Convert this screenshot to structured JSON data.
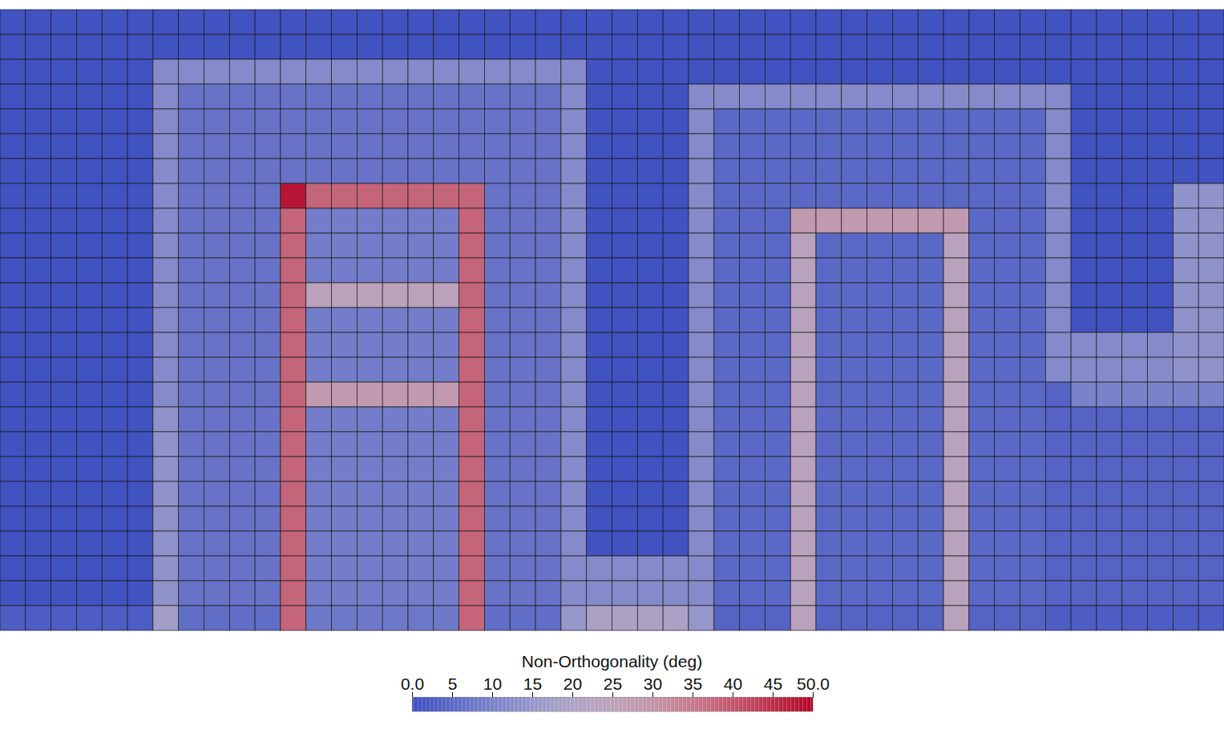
{
  "chart_data": {
    "type": "heatmap",
    "tick_labels": false,
    "cells": [
      [
        1,
        1,
        1,
        1,
        1,
        1,
        1,
        1,
        1,
        1,
        1,
        1,
        1,
        1,
        1,
        1,
        1,
        1,
        1,
        1,
        1,
        1,
        1,
        1,
        1,
        1,
        1,
        1,
        1,
        1,
        1,
        1,
        1,
        1,
        1,
        1,
        1,
        1,
        1,
        1,
        1,
        1,
        1,
        1,
        1,
        1,
        1,
        1
      ],
      [
        1,
        1,
        1,
        1,
        1,
        1,
        1,
        1,
        1,
        1,
        1,
        1,
        1,
        1,
        1,
        1,
        1,
        1,
        1,
        1,
        1,
        1,
        1,
        1,
        1,
        1,
        1,
        1,
        1,
        1,
        1,
        1,
        1,
        1,
        1,
        1,
        1,
        1,
        1,
        1,
        1,
        1,
        1,
        1,
        1,
        1,
        1,
        1
      ],
      [
        1,
        1,
        1,
        1,
        1,
        1,
        12,
        12,
        12,
        12,
        12,
        12,
        12,
        12,
        12,
        12,
        12,
        12,
        12,
        12,
        12,
        12,
        12,
        1,
        1,
        1,
        1,
        1,
        1,
        1,
        1,
        1,
        1,
        1,
        1,
        1,
        1,
        1,
        1,
        1,
        1,
        1,
        1,
        1,
        1,
        1,
        1,
        1
      ],
      [
        1,
        1,
        1,
        1,
        1,
        1,
        12,
        7,
        7,
        7,
        7,
        7,
        7,
        7,
        7,
        7,
        7,
        7,
        7,
        7,
        7,
        7,
        12,
        1,
        1,
        1,
        1,
        12,
        12,
        12,
        12,
        12,
        12,
        12,
        12,
        12,
        12,
        12,
        12,
        12,
        12,
        12,
        1,
        1,
        1,
        1,
        1,
        1
      ],
      [
        1,
        1,
        1,
        1,
        1,
        1,
        12,
        7,
        7,
        7,
        7,
        7,
        7,
        7,
        7,
        7,
        7,
        7,
        7,
        7,
        7,
        7,
        12,
        1,
        1,
        1,
        1,
        12,
        5,
        5,
        5,
        5,
        5,
        5,
        5,
        5,
        5,
        5,
        5,
        5,
        5,
        12,
        1,
        1,
        1,
        1,
        1,
        1
      ],
      [
        1,
        1,
        1,
        1,
        1,
        1,
        12,
        7,
        7,
        7,
        7,
        7,
        7,
        7,
        7,
        7,
        7,
        7,
        7,
        7,
        7,
        7,
        12,
        1,
        1,
        1,
        1,
        12,
        5,
        5,
        5,
        5,
        5,
        5,
        5,
        5,
        5,
        5,
        5,
        5,
        5,
        12,
        1,
        1,
        1,
        1,
        1,
        1
      ],
      [
        1,
        1,
        1,
        1,
        1,
        1,
        12,
        7,
        7,
        7,
        7,
        7,
        7,
        7,
        7,
        7,
        7,
        7,
        7,
        7,
        7,
        7,
        12,
        1,
        1,
        1,
        1,
        12,
        5,
        5,
        5,
        5,
        5,
        5,
        5,
        5,
        5,
        5,
        5,
        5,
        5,
        12,
        1,
        1,
        1,
        1,
        1,
        1
      ],
      [
        1,
        1,
        1,
        1,
        1,
        1,
        12,
        7,
        7,
        7,
        7,
        48,
        38,
        38,
        38,
        38,
        38,
        38,
        38,
        7,
        7,
        7,
        12,
        1,
        1,
        1,
        1,
        12,
        5,
        5,
        5,
        5,
        5,
        5,
        5,
        5,
        5,
        5,
        5,
        5,
        5,
        12,
        1,
        1,
        1,
        1,
        14,
        14
      ],
      [
        1,
        1,
        1,
        1,
        1,
        1,
        12,
        7,
        7,
        7,
        7,
        38,
        9,
        9,
        9,
        9,
        9,
        9,
        38,
        7,
        7,
        7,
        12,
        1,
        1,
        1,
        1,
        12,
        5,
        5,
        5,
        28,
        28,
        28,
        28,
        28,
        28,
        28,
        5,
        5,
        5,
        12,
        1,
        1,
        1,
        1,
        14,
        14
      ],
      [
        1,
        1,
        1,
        1,
        1,
        1,
        12,
        7,
        7,
        7,
        7,
        38,
        9,
        9,
        9,
        9,
        9,
        9,
        38,
        7,
        7,
        7,
        12,
        1,
        1,
        1,
        1,
        12,
        5,
        5,
        5,
        24,
        5,
        5,
        5,
        5,
        5,
        24,
        5,
        5,
        5,
        12,
        1,
        1,
        1,
        1,
        14,
        14
      ],
      [
        1,
        1,
        1,
        1,
        1,
        1,
        12,
        7,
        7,
        7,
        7,
        38,
        9,
        9,
        9,
        9,
        9,
        9,
        38,
        7,
        7,
        7,
        12,
        1,
        1,
        1,
        1,
        12,
        5,
        5,
        5,
        24,
        5,
        5,
        5,
        5,
        5,
        24,
        5,
        5,
        5,
        12,
        1,
        1,
        1,
        1,
        14,
        14
      ],
      [
        1,
        1,
        1,
        1,
        1,
        1,
        12,
        7,
        7,
        7,
        7,
        38,
        25,
        25,
        25,
        25,
        25,
        25,
        38,
        7,
        7,
        7,
        12,
        1,
        1,
        1,
        1,
        12,
        5,
        5,
        5,
        24,
        5,
        5,
        5,
        5,
        5,
        24,
        5,
        5,
        5,
        12,
        1,
        1,
        1,
        1,
        14,
        14
      ],
      [
        1,
        1,
        1,
        1,
        1,
        1,
        12,
        7,
        7,
        7,
        7,
        38,
        9,
        9,
        9,
        9,
        9,
        9,
        38,
        7,
        7,
        7,
        12,
        1,
        1,
        1,
        1,
        12,
        5,
        5,
        5,
        24,
        5,
        5,
        5,
        5,
        5,
        24,
        5,
        5,
        5,
        12,
        1,
        1,
        1,
        1,
        14,
        14
      ],
      [
        1,
        1,
        1,
        1,
        1,
        1,
        12,
        7,
        7,
        7,
        7,
        38,
        9,
        9,
        9,
        9,
        9,
        9,
        38,
        7,
        7,
        7,
        12,
        1,
        1,
        1,
        1,
        12,
        5,
        5,
        5,
        24,
        5,
        5,
        5,
        5,
        5,
        24,
        5,
        5,
        5,
        12,
        12,
        12,
        12,
        12,
        14,
        14
      ],
      [
        1,
        1,
        1,
        1,
        1,
        1,
        12,
        7,
        7,
        7,
        7,
        38,
        9,
        9,
        9,
        9,
        9,
        9,
        38,
        7,
        7,
        7,
        12,
        1,
        1,
        1,
        1,
        12,
        5,
        5,
        5,
        24,
        5,
        5,
        5,
        5,
        5,
        24,
        5,
        5,
        5,
        12,
        12,
        12,
        12,
        12,
        14,
        14
      ],
      [
        1,
        1,
        1,
        1,
        1,
        1,
        12,
        7,
        7,
        7,
        7,
        38,
        28,
        28,
        28,
        28,
        28,
        28,
        38,
        7,
        7,
        7,
        12,
        1,
        1,
        1,
        1,
        12,
        5,
        5,
        5,
        24,
        5,
        5,
        5,
        5,
        5,
        24,
        5,
        5,
        5,
        4,
        10,
        10,
        10,
        10,
        10,
        10
      ],
      [
        1,
        1,
        1,
        1,
        1,
        1,
        14,
        7,
        7,
        7,
        7,
        38,
        9,
        9,
        9,
        9,
        9,
        9,
        38,
        7,
        7,
        7,
        12,
        1,
        1,
        1,
        1,
        12,
        5,
        5,
        5,
        24,
        5,
        5,
        5,
        5,
        5,
        24,
        5,
        5,
        5,
        4,
        4,
        4,
        4,
        4,
        4,
        4
      ],
      [
        1,
        1,
        1,
        1,
        1,
        1,
        14,
        7,
        7,
        7,
        7,
        38,
        9,
        9,
        9,
        9,
        9,
        9,
        38,
        7,
        7,
        7,
        12,
        1,
        1,
        1,
        1,
        12,
        5,
        5,
        5,
        24,
        5,
        5,
        5,
        5,
        5,
        24,
        5,
        5,
        5,
        4,
        4,
        4,
        4,
        4,
        4,
        4
      ],
      [
        1,
        1,
        1,
        1,
        1,
        1,
        14,
        7,
        7,
        7,
        7,
        38,
        9,
        9,
        9,
        9,
        9,
        9,
        38,
        7,
        7,
        7,
        12,
        1,
        1,
        1,
        1,
        12,
        5,
        5,
        5,
        24,
        5,
        5,
        5,
        5,
        5,
        24,
        5,
        5,
        5,
        4,
        4,
        4,
        4,
        4,
        4,
        4
      ],
      [
        1,
        1,
        1,
        1,
        1,
        1,
        14,
        7,
        7,
        7,
        7,
        38,
        9,
        9,
        9,
        9,
        9,
        9,
        38,
        7,
        7,
        7,
        12,
        1,
        1,
        1,
        1,
        12,
        5,
        5,
        5,
        24,
        5,
        5,
        5,
        5,
        5,
        24,
        5,
        5,
        5,
        4,
        4,
        4,
        4,
        4,
        4,
        4
      ],
      [
        1,
        1,
        1,
        1,
        1,
        1,
        14,
        7,
        7,
        7,
        7,
        38,
        9,
        9,
        9,
        9,
        9,
        9,
        38,
        7,
        7,
        7,
        12,
        1,
        1,
        1,
        1,
        12,
        5,
        5,
        5,
        24,
        5,
        5,
        5,
        5,
        5,
        24,
        5,
        5,
        5,
        4,
        4,
        4,
        4,
        4,
        4,
        4
      ],
      [
        1,
        1,
        1,
        1,
        1,
        1,
        14,
        7,
        7,
        7,
        7,
        38,
        9,
        9,
        9,
        9,
        9,
        9,
        38,
        7,
        7,
        7,
        12,
        1,
        1,
        1,
        1,
        12,
        5,
        5,
        5,
        24,
        5,
        5,
        5,
        5,
        5,
        24,
        5,
        5,
        5,
        4,
        4,
        4,
        4,
        4,
        4,
        4
      ],
      [
        1,
        1,
        1,
        1,
        1,
        1,
        14,
        7,
        7,
        7,
        7,
        38,
        9,
        9,
        9,
        9,
        9,
        9,
        38,
        7,
        7,
        7,
        12,
        12,
        12,
        12,
        12,
        12,
        5,
        5,
        5,
        24,
        5,
        5,
        5,
        5,
        5,
        24,
        5,
        5,
        5,
        4,
        4,
        4,
        4,
        4,
        4,
        4
      ],
      [
        1,
        1,
        1,
        1,
        1,
        1,
        14,
        7,
        7,
        7,
        7,
        38,
        9,
        9,
        9,
        9,
        9,
        9,
        38,
        7,
        7,
        7,
        12,
        12,
        12,
        12,
        12,
        12,
        5,
        5,
        5,
        24,
        5,
        5,
        5,
        5,
        5,
        24,
        5,
        5,
        5,
        4,
        4,
        4,
        4,
        4,
        4,
        4
      ],
      [
        3,
        3,
        3,
        3,
        3,
        3,
        18,
        6,
        6,
        6,
        6,
        38,
        8,
        8,
        8,
        8,
        8,
        8,
        38,
        6,
        6,
        6,
        15,
        20,
        20,
        20,
        20,
        15,
        4,
        4,
        4,
        24,
        4,
        4,
        4,
        4,
        4,
        24,
        4,
        4,
        4,
        3,
        3,
        3,
        3,
        3,
        3,
        3
      ]
    ],
    "colorbar": {
      "label": "Non-Orthogonality (deg)",
      "range": [
        0,
        50
      ],
      "ticks": [
        {
          "value": 0,
          "label": "0.0"
        },
        5,
        10,
        15,
        20,
        25,
        30,
        35,
        40,
        45,
        {
          "value": 50,
          "label": "50.0"
        }
      ]
    }
  }
}
